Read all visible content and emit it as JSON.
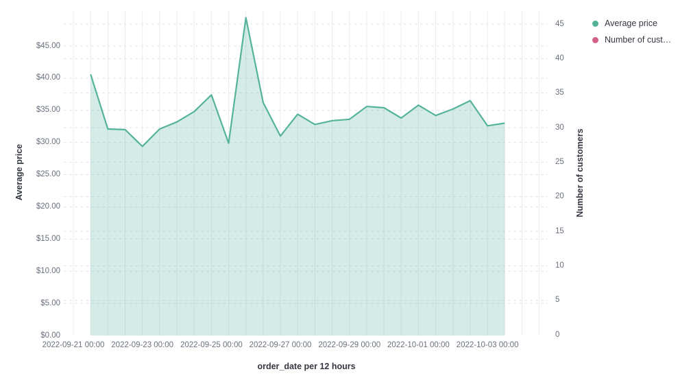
{
  "chart": {
    "legend": {
      "items": [
        {
          "label": "Average price",
          "color": "#54b399",
          "icon": "circle"
        },
        {
          "label": "Number of cust…",
          "color": "#d36086",
          "icon": "circle"
        }
      ]
    },
    "x_axis": {
      "title": "order_date per 12 hours",
      "tick_labels": [
        "2022-09-21 00:00",
        "2022-09-23 00:00",
        "2022-09-25 00:00",
        "2022-09-27 00:00",
        "2022-09-29 00:00",
        "2022-10-01 00:00",
        "2022-10-03 00:00"
      ]
    },
    "y_axis_left": {
      "title": "Average price",
      "tick_labels": [
        "$0.00",
        "$5.00",
        "$10.00",
        "$15.00",
        "$20.00",
        "$25.00",
        "$30.00",
        "$35.00",
        "$40.00",
        "$45.00"
      ]
    },
    "y_axis_right": {
      "title": "Number of customers",
      "tick_labels": [
        "0",
        "5",
        "10",
        "15",
        "20",
        "25",
        "30",
        "35",
        "40",
        "45"
      ]
    },
    "colors": {
      "area_line": "#54b399",
      "area_fill": "rgba(84,179,153,0.25)",
      "grid_vertical": "#e9edf2",
      "grid_horizontal": "#dfe4ea",
      "tick_text": "#69707d",
      "title_text": "#343741"
    }
  },
  "chart_data": {
    "type": "area",
    "title": "",
    "xlabel": "order_date per 12 hours",
    "ylabel_left": "Average price",
    "ylabel_right": "Number of customers",
    "x_interval": "12 hours",
    "x": [
      "2022-09-21 12:00",
      "2022-09-22 00:00",
      "2022-09-22 12:00",
      "2022-09-23 00:00",
      "2022-09-23 12:00",
      "2022-09-24 00:00",
      "2022-09-24 12:00",
      "2022-09-25 00:00",
      "2022-09-25 12:00",
      "2022-09-26 00:00",
      "2022-09-26 12:00",
      "2022-09-27 00:00",
      "2022-09-27 12:00",
      "2022-09-28 00:00",
      "2022-09-28 12:00",
      "2022-09-29 00:00",
      "2022-09-29 12:00",
      "2022-09-30 00:00",
      "2022-09-30 12:00",
      "2022-10-01 00:00",
      "2022-10-01 12:00",
      "2022-10-02 00:00",
      "2022-10-02 12:00",
      "2022-10-03 00:00",
      "2022-10-03 12:00"
    ],
    "series": [
      {
        "name": "Average price",
        "axis": "left",
        "color": "#54b399",
        "values": [
          40.6,
          32.1,
          32.0,
          29.4,
          32.1,
          33.2,
          34.8,
          37.4,
          29.9,
          49.4,
          36.2,
          31.0,
          34.4,
          32.8,
          33.4,
          33.6,
          35.6,
          35.4,
          33.8,
          35.8,
          34.2,
          35.2,
          36.5,
          32.6,
          33.0
        ]
      },
      {
        "name": "Number of customers",
        "axis": "right",
        "color": "#d36086",
        "values": []
      }
    ],
    "ylim_left": [
      0,
      50.5
    ],
    "ylim_right": [
      0,
      47
    ],
    "y_ticks_left": [
      0,
      5,
      10,
      15,
      20,
      25,
      30,
      35,
      40,
      45
    ],
    "y_ticks_right": [
      0,
      5,
      10,
      15,
      20,
      25,
      30,
      35,
      40,
      45
    ],
    "grid": true,
    "legend_position": "top-right"
  }
}
